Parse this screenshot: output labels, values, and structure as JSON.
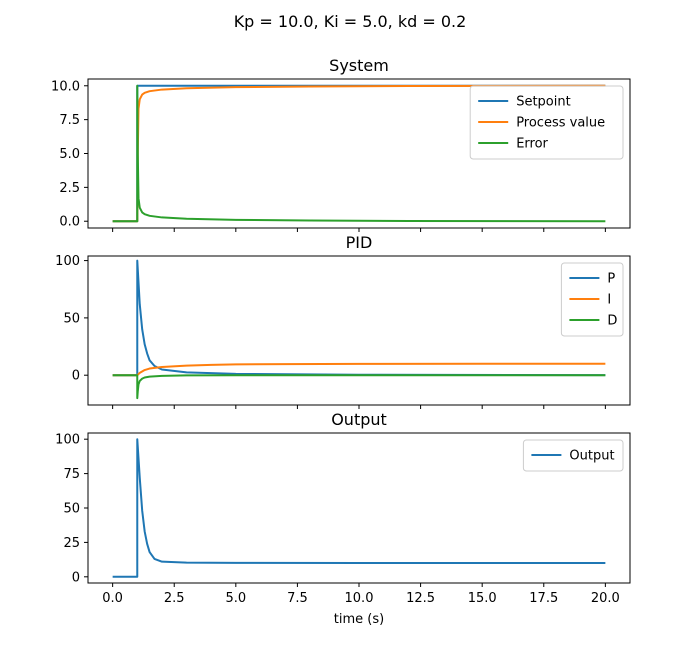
{
  "figure": {
    "suptitle": "Kp = 10.0, Ki = 5.0, kd = 0.2",
    "xlabel": "time (s)"
  },
  "colors": {
    "blue": "#1f77b4",
    "orange": "#ff7f0e",
    "green": "#2ca02c"
  },
  "chart_data": [
    {
      "type": "line",
      "title": "System",
      "xlim": [
        -1.0,
        21.0
      ],
      "ylim": [
        -0.5,
        10.5
      ],
      "xticks": [
        0.0,
        2.5,
        5.0,
        7.5,
        10.0,
        12.5,
        15.0,
        17.5,
        20.0
      ],
      "yticks": [
        0.0,
        2.5,
        5.0,
        7.5,
        10.0
      ],
      "ytick_labels": [
        "0.0",
        "2.5",
        "5.0",
        "7.5",
        "10.0"
      ],
      "show_xtick_labels": false,
      "legend": "top-right",
      "series": [
        {
          "name": "Setpoint",
          "color": "#1f77b4",
          "x": [
            0,
            1,
            1,
            20
          ],
          "y": [
            0,
            0,
            10,
            10
          ]
        },
        {
          "name": "Process value",
          "color": "#ff7f0e",
          "x": [
            0,
            1,
            1.02,
            1.05,
            1.1,
            1.2,
            1.3,
            1.5,
            2,
            3,
            5,
            8,
            12,
            20
          ],
          "y": [
            0,
            0,
            5.0,
            8.3,
            9.0,
            9.35,
            9.48,
            9.6,
            9.72,
            9.82,
            9.9,
            9.95,
            9.98,
            10.0
          ]
        },
        {
          "name": "Error",
          "color": "#2ca02c",
          "x": [
            0,
            1,
            1,
            1.02,
            1.05,
            1.1,
            1.2,
            1.3,
            1.5,
            2,
            3,
            5,
            8,
            12,
            20
          ],
          "y": [
            0,
            0,
            10,
            5.0,
            1.7,
            1.0,
            0.65,
            0.52,
            0.4,
            0.28,
            0.18,
            0.1,
            0.05,
            0.02,
            0.0
          ]
        }
      ]
    },
    {
      "type": "line",
      "title": "PID",
      "xlim": [
        -1.0,
        21.0
      ],
      "ylim": [
        -26.0,
        104.0
      ],
      "xticks": [
        0.0,
        2.5,
        5.0,
        7.5,
        10.0,
        12.5,
        15.0,
        17.5,
        20.0
      ],
      "yticks": [
        0,
        50,
        100
      ],
      "ytick_labels": [
        "0",
        "50",
        "100"
      ],
      "show_xtick_labels": false,
      "legend": "top-right",
      "series": [
        {
          "name": "P",
          "color": "#1f77b4",
          "x": [
            0,
            1,
            1,
            1.1,
            1.2,
            1.3,
            1.4,
            1.5,
            1.7,
            2,
            3,
            5,
            10,
            20
          ],
          "y": [
            0,
            0,
            100,
            62,
            40,
            27,
            19,
            13,
            8,
            5,
            2.5,
            1.2,
            0.4,
            0.1
          ]
        },
        {
          "name": "I",
          "color": "#ff7f0e",
          "x": [
            0,
            1,
            1.1,
            1.3,
            1.5,
            2,
            3,
            4,
            5,
            7,
            10,
            15,
            20
          ],
          "y": [
            0,
            0,
            2,
            4.5,
            5.8,
            7.2,
            8.4,
            9.0,
            9.4,
            9.7,
            9.85,
            9.95,
            10.0
          ]
        },
        {
          "name": "D",
          "color": "#2ca02c",
          "x": [
            0,
            1,
            1.0,
            1.02,
            1.05,
            1.1,
            1.2,
            1.3,
            1.5,
            2,
            3,
            5,
            20
          ],
          "y": [
            0,
            0,
            -20,
            -14,
            -8,
            -5,
            -3,
            -2,
            -1.2,
            -0.6,
            -0.2,
            0,
            0
          ]
        }
      ]
    },
    {
      "type": "line",
      "title": "Output",
      "xlabel": "time (s)",
      "xlim": [
        -1.0,
        21.0
      ],
      "ylim": [
        -4.5,
        104.5
      ],
      "xticks": [
        0.0,
        2.5,
        5.0,
        7.5,
        10.0,
        12.5,
        15.0,
        17.5,
        20.0
      ],
      "xtick_labels": [
        "0.0",
        "2.5",
        "5.0",
        "7.5",
        "10.0",
        "12.5",
        "15.0",
        "17.5",
        "20.0"
      ],
      "yticks": [
        0,
        25,
        50,
        75,
        100
      ],
      "ytick_labels": [
        "0",
        "25",
        "50",
        "75",
        "100"
      ],
      "show_xtick_labels": true,
      "legend": "top-right",
      "series": [
        {
          "name": "Output",
          "color": "#1f77b4",
          "x": [
            0,
            1,
            1,
            1.1,
            1.2,
            1.3,
            1.4,
            1.5,
            1.7,
            2,
            3,
            5,
            10,
            20
          ],
          "y": [
            0,
            0,
            100,
            72,
            48,
            33,
            24,
            18,
            13,
            11,
            10.3,
            10.1,
            10.0,
            10.0
          ]
        }
      ]
    }
  ]
}
